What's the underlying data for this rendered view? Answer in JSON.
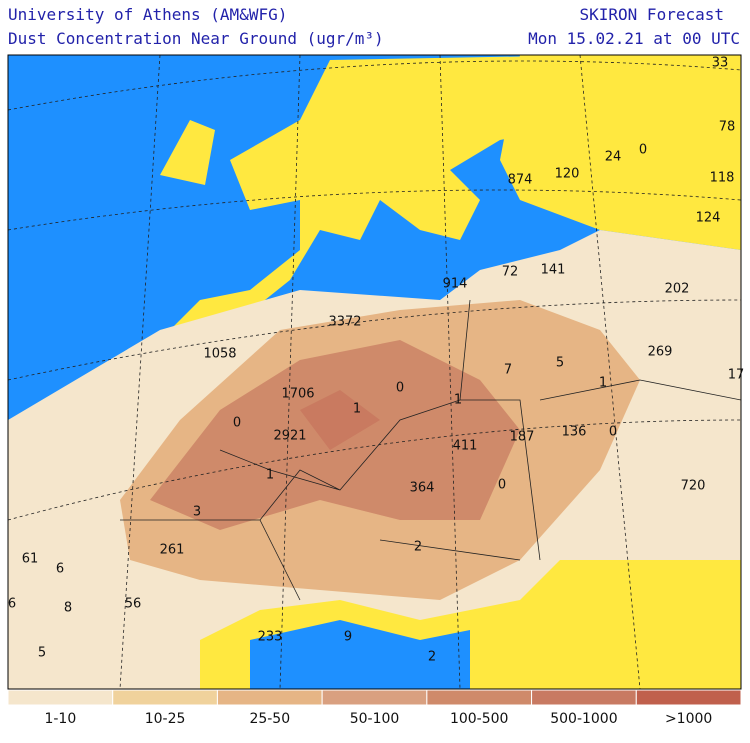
{
  "header": {
    "title_left": "University of Athens (AM&WFG)",
    "subtitle_left": "Dust Concentration Near Ground (ugr/m³)",
    "title_right": "SKIRON Forecast",
    "subtitle_right": "Mon 15.02.21 at 00 UTC"
  },
  "map": {
    "labels": [
      "33",
      "78",
      "0",
      "24",
      "118",
      "874",
      "120",
      "124",
      "914",
      "72",
      "141",
      "202",
      "3372",
      "1058",
      "269",
      "5",
      "7",
      "1",
      "17",
      "0",
      "1706",
      "1",
      "1",
      "0",
      "2921",
      "411",
      "187",
      "136",
      "0",
      "1",
      "364",
      "0",
      "720",
      "3",
      "2",
      "261",
      "61",
      "6",
      "6",
      "8",
      "56",
      "233",
      "9",
      "2",
      "5"
    ]
  },
  "legend": [
    {
      "label": "1-10",
      "color": "#f5e6cc"
    },
    {
      "label": "10-25",
      "color": "#f0d29c"
    },
    {
      "label": "25-50",
      "color": "#e6b585"
    },
    {
      "label": "50-100",
      "color": "#d9a080"
    },
    {
      "label": "100-500",
      "color": "#cf8a6a"
    },
    {
      "label": "500-1000",
      "color": "#c87a62"
    },
    {
      "label": ">1000",
      "color": "#c0604c"
    }
  ]
}
